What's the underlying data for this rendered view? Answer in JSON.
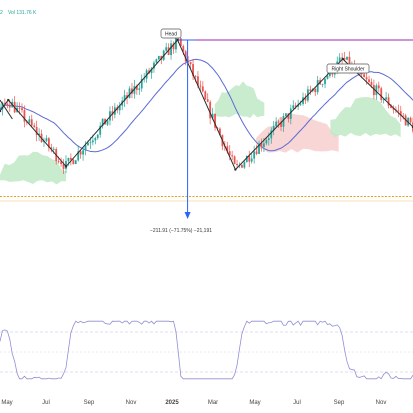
{
  "header": {
    "volume_text": "Vol 131.76 K",
    "left_fragment": "2"
  },
  "colors": {
    "up": "#26a69a",
    "down": "#ef5350",
    "pattern_line": "#2b2b2b",
    "ma_line": "#5b6bd5",
    "cloud_green": "#bfe8c6",
    "cloud_red": "#f7cfcf",
    "measure": "#2962ff",
    "target_line": "#9c27b0",
    "support": "#e3a019",
    "rsi_line": "#8f8fd4"
  },
  "annotations": {
    "head": "Head",
    "right_shoulder": "Right Shoulder",
    "measure": "−211.91 (−71.75%) −21,191"
  },
  "chart_data": {
    "type": "candlestick",
    "title": "",
    "xlabel": "",
    "ylabel": "",
    "x_ticks": [
      "May",
      "Jul",
      "Sep",
      "Nov",
      "2025",
      "Mar",
      "May",
      "Jul",
      "Sep",
      "Nov"
    ],
    "pattern_pivots": [
      {
        "label": "",
        "t": 0.0,
        "price": 0.55
      },
      {
        "label": "",
        "t": 0.02,
        "price": 0.62
      },
      {
        "label": "",
        "t": 0.16,
        "price": 0.2
      },
      {
        "label": "Head",
        "t": 0.43,
        "price": 1.0
      },
      {
        "label": "",
        "t": 0.57,
        "price": 0.18
      },
      {
        "label": "Right Shoulder",
        "t": 0.83,
        "price": 0.88
      },
      {
        "label": "",
        "t": 1.0,
        "price": 0.45
      }
    ],
    "series": [
      {
        "kind": "candles",
        "name": ""
      },
      {
        "kind": "moving_average",
        "name": ""
      },
      {
        "kind": "cloud",
        "name": ""
      },
      {
        "kind": "rsi",
        "name": ""
      }
    ],
    "grid": false,
    "legend": "none"
  }
}
